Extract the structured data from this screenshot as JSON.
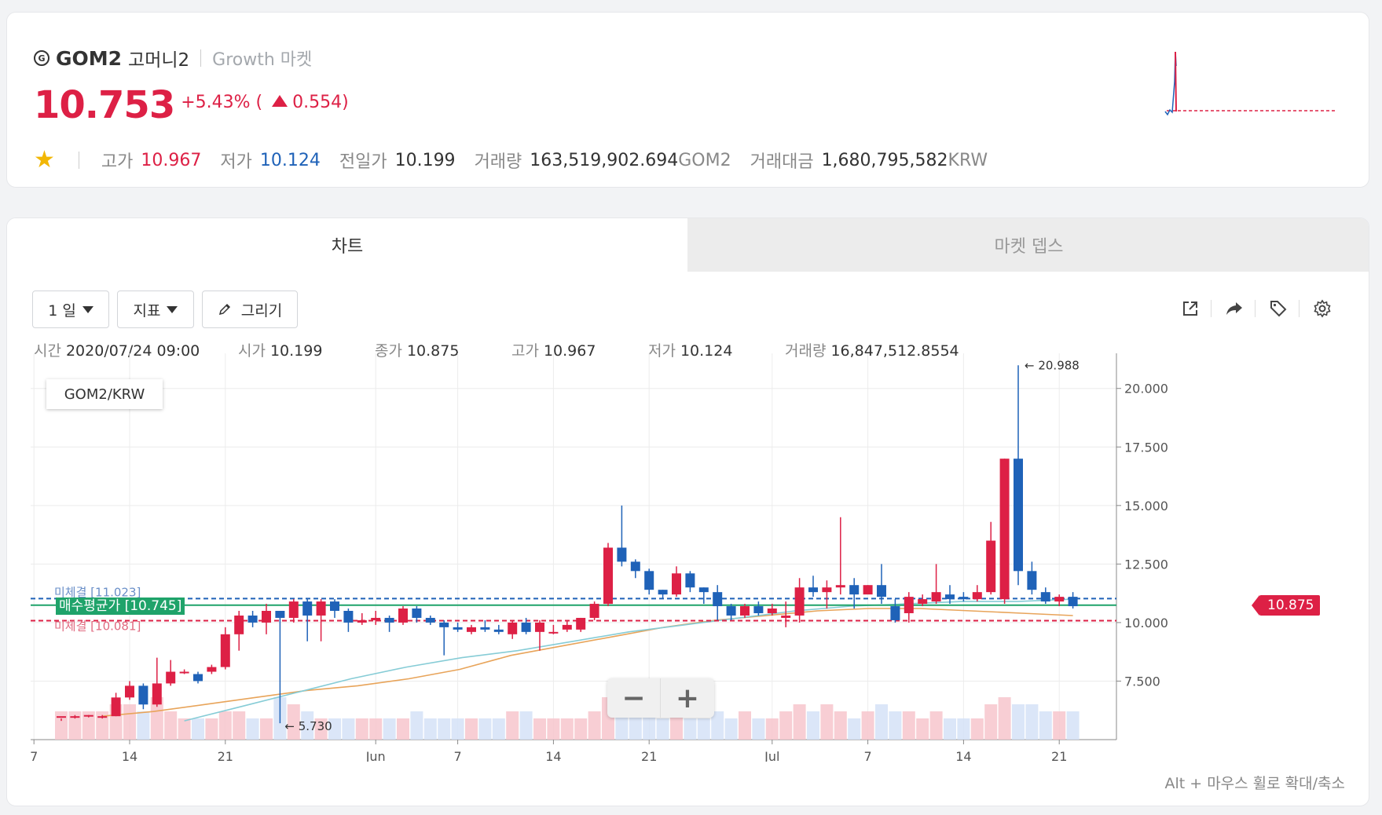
{
  "header": {
    "icon": "G",
    "symbol": "GOM2",
    "korean_name": "고머니2",
    "market": "Growth 마켓",
    "price": "10.753",
    "change_pct": "+5.43% (",
    "change_abs": "0.554)",
    "high_label": "고가",
    "high": "10.967",
    "low_label": "저가",
    "low": "10.124",
    "prev_label": "전일가",
    "prev": "10.199",
    "volume_label": "거래량",
    "volume": "163,519,902.694",
    "volume_unit": "GOM2",
    "amount_label": "거래대금",
    "amount": "1,680,795,582",
    "amount_unit": "KRW"
  },
  "tabs": {
    "chart": "차트",
    "depth": "마켓 뎁스"
  },
  "toolbar": {
    "period": "1 일",
    "indicator": "지표",
    "draw": "그리기"
  },
  "ohlc": {
    "time_label": "시간",
    "time": "2020/07/24 09:00",
    "open_label": "시가",
    "open": "10.199",
    "close_label": "종가",
    "close": "10.875",
    "high_label": "고가",
    "high": "10.967",
    "low_label": "저가",
    "low": "10.124",
    "vol_label": "거래량",
    "vol": "16,847,512.8554"
  },
  "chart": {
    "pair_label": "GOM2/KRW",
    "avg_buy_label": "매수평균가 [10.745]",
    "unfilled_top_label": "미체결 [11.023]",
    "unfilled_bottom_label": "미체결 [10.081]",
    "last_price_label": "10.875",
    "max_annotation": "← 20.988",
    "min_annotation": "← 5.730",
    "zoom_out": "−",
    "zoom_in": "+",
    "hint": "Alt + 마우스 휠로 확대/축소"
  },
  "colors": {
    "up": "#dd2045",
    "down": "#1f62b8",
    "avg": "#1fa36a",
    "ma_short": "#e8a45a",
    "ma_long": "#86ccd6"
  },
  "chart_data": {
    "type": "candlestick",
    "y_ticks": [
      "20.000",
      "17.500",
      "15.000",
      "12.500",
      "10.000",
      "7.500"
    ],
    "ylim": [
      5,
      21.5
    ],
    "x_ticks": [
      "7",
      "14",
      "21",
      "Jun",
      "7",
      "14",
      "21",
      "Jul",
      "7",
      "14",
      "21"
    ],
    "x_tick_index": [
      -2,
      5,
      12,
      23,
      29,
      36,
      43,
      52,
      59,
      66,
      73
    ],
    "candles": [
      [
        6.0,
        6.0,
        5.9,
        5.8,
        4
      ],
      [
        6.0,
        6.0,
        6.05,
        5.9,
        4
      ],
      [
        6.0,
        6.05,
        6.05,
        5.95,
        4
      ],
      [
        6.0,
        6.0,
        6.05,
        5.9,
        4
      ],
      [
        6.0,
        6.8,
        7.0,
        6.0,
        5
      ],
      [
        6.8,
        7.3,
        7.5,
        6.7,
        5
      ],
      [
        7.3,
        6.5,
        7.4,
        6.3,
        4
      ],
      [
        6.5,
        7.4,
        8.5,
        6.4,
        6
      ],
      [
        7.4,
        7.9,
        8.4,
        7.3,
        4
      ],
      [
        7.9,
        7.9,
        8.0,
        7.8,
        3
      ],
      [
        7.8,
        7.5,
        7.9,
        7.4,
        3
      ],
      [
        7.9,
        8.1,
        8.2,
        7.8,
        3
      ],
      [
        8.1,
        9.5,
        9.8,
        8.0,
        4
      ],
      [
        9.5,
        10.3,
        10.5,
        8.8,
        4
      ],
      [
        10.3,
        10.0,
        10.5,
        9.8,
        3
      ],
      [
        10.0,
        10.5,
        10.8,
        9.5,
        3
      ],
      [
        10.5,
        10.2,
        10.4,
        5.7,
        6
      ],
      [
        10.2,
        10.9,
        11.0,
        10.0,
        5
      ],
      [
        10.9,
        10.3,
        11.0,
        9.2,
        4
      ],
      [
        10.3,
        10.9,
        11.0,
        9.2,
        3
      ],
      [
        10.9,
        10.5,
        11.0,
        10.2,
        3
      ],
      [
        10.5,
        10.0,
        10.6,
        9.6,
        3
      ],
      [
        10.0,
        10.1,
        10.4,
        9.9,
        3
      ],
      [
        10.1,
        10.2,
        10.5,
        9.9,
        3
      ],
      [
        10.2,
        10.0,
        10.3,
        9.6,
        3
      ],
      [
        10.0,
        10.6,
        10.7,
        9.9,
        3
      ],
      [
        10.6,
        10.2,
        10.7,
        10.0,
        4
      ],
      [
        10.2,
        10.0,
        10.3,
        9.9,
        3
      ],
      [
        10.0,
        9.8,
        10.1,
        8.6,
        3
      ],
      [
        9.8,
        9.7,
        10.0,
        9.6,
        3
      ],
      [
        9.6,
        9.8,
        9.9,
        9.5,
        3
      ],
      [
        9.8,
        9.7,
        10.1,
        9.6,
        3
      ],
      [
        9.7,
        9.6,
        9.9,
        9.5,
        3
      ],
      [
        9.5,
        10.0,
        10.1,
        9.3,
        4
      ],
      [
        10.0,
        9.6,
        10.2,
        9.5,
        4
      ],
      [
        9.6,
        10.0,
        10.1,
        8.8,
        3
      ],
      [
        9.6,
        9.6,
        9.9,
        9.5,
        3
      ],
      [
        9.7,
        9.9,
        10.1,
        9.6,
        3
      ],
      [
        9.7,
        10.2,
        10.2,
        9.6,
        3
      ],
      [
        10.2,
        10.8,
        10.9,
        10.1,
        4
      ],
      [
        10.8,
        13.2,
        13.4,
        10.7,
        6
      ],
      [
        13.2,
        12.6,
        15.0,
        12.4,
        5
      ],
      [
        12.6,
        12.2,
        12.7,
        11.9,
        4
      ],
      [
        12.2,
        11.4,
        12.3,
        11.2,
        4
      ],
      [
        11.4,
        11.2,
        11.4,
        11.0,
        3
      ],
      [
        11.2,
        12.1,
        12.4,
        11.1,
        4
      ],
      [
        12.1,
        11.5,
        12.2,
        11.3,
        3
      ],
      [
        11.5,
        11.3,
        11.5,
        10.8,
        3
      ],
      [
        11.3,
        10.7,
        11.6,
        10.1,
        4
      ],
      [
        10.7,
        10.3,
        10.8,
        10.1,
        3
      ],
      [
        10.3,
        10.7,
        10.8,
        10.2,
        4
      ],
      [
        10.7,
        10.4,
        10.9,
        10.3,
        3
      ],
      [
        10.4,
        10.6,
        10.8,
        10.3,
        3
      ],
      [
        10.2,
        10.3,
        10.9,
        9.8,
        4
      ],
      [
        10.3,
        11.5,
        11.9,
        10.0,
        5
      ],
      [
        11.5,
        11.3,
        12.0,
        11.1,
        4
      ],
      [
        11.3,
        11.5,
        11.8,
        10.6,
        5
      ],
      [
        11.5,
        11.6,
        14.5,
        11.2,
        4
      ],
      [
        11.6,
        11.2,
        11.9,
        10.6,
        3
      ],
      [
        11.2,
        11.6,
        11.6,
        11.3,
        4
      ],
      [
        11.6,
        11.1,
        12.5,
        10.8,
        5
      ],
      [
        10.7,
        10.1,
        11.0,
        10.0,
        4
      ],
      [
        10.4,
        11.1,
        11.3,
        10.0,
        4
      ],
      [
        10.8,
        11.0,
        11.2,
        10.7,
        3
      ],
      [
        10.9,
        11.3,
        12.5,
        10.8,
        4
      ],
      [
        11.2,
        11.0,
        11.6,
        10.8,
        3
      ],
      [
        11.1,
        11.0,
        11.3,
        10.9,
        3
      ],
      [
        11.0,
        11.3,
        11.6,
        10.9,
        3
      ],
      [
        11.3,
        13.5,
        14.3,
        11.2,
        5
      ],
      [
        11.0,
        17.0,
        17.0,
        10.8,
        6
      ],
      [
        17.0,
        12.2,
        20.988,
        11.6,
        5
      ],
      [
        12.2,
        11.4,
        12.6,
        11.2,
        5
      ],
      [
        11.3,
        10.9,
        11.5,
        10.8,
        4
      ],
      [
        10.9,
        11.1,
        11.2,
        10.7,
        4
      ],
      [
        11.1,
        10.7,
        11.3,
        10.6,
        4
      ]
    ],
    "ma_short": [
      6.0,
      6.2,
      6.5,
      6.8,
      7.1,
      7.3,
      7.6,
      8.0,
      8.6,
      9.0,
      9.4,
      9.8,
      10.1,
      10.3,
      10.5,
      10.6,
      10.6,
      10.5,
      10.4,
      10.3
    ],
    "ma_long": [
      5.8,
      6.4,
      7.0,
      7.6,
      8.1,
      8.5,
      8.8,
      9.2,
      9.6,
      9.9,
      10.2,
      10.5,
      10.7,
      10.8,
      10.9,
      10.9,
      11.0
    ],
    "avg_buy": 10.745,
    "unfilled_top": 11.023,
    "unfilled_bottom": 10.081,
    "last_price": 10.875,
    "max_price": 20.988,
    "min_price": 5.73
  }
}
